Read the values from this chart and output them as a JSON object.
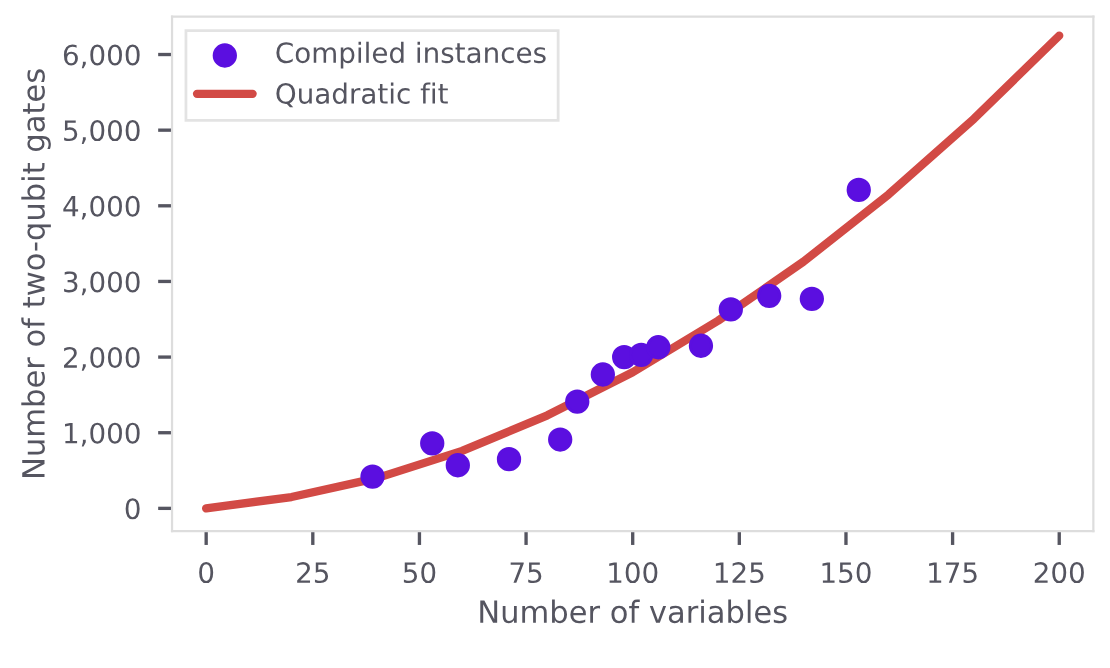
{
  "chart_data": {
    "type": "scatter",
    "xlabel": "Number of variables",
    "ylabel": "Number of two-qubit gates",
    "series": [
      {
        "name": "Compiled instances",
        "color": "#5b0fe0",
        "marker": "circle",
        "x": [
          39,
          53,
          59,
          71,
          83,
          87,
          93,
          98,
          102,
          106,
          116,
          123,
          132,
          142,
          153
        ],
        "values": [
          420,
          860,
          570,
          650,
          910,
          1410,
          1770,
          2000,
          2030,
          2130,
          2150,
          2630,
          2810,
          2770,
          4210
        ]
      },
      {
        "name": "Quadratic fit",
        "type": "line",
        "color": "#d24a45",
        "x": [
          0,
          20,
          40,
          60,
          80,
          100,
          120,
          140,
          160,
          180,
          200
        ],
        "values": [
          0,
          150,
          400,
          760,
          1230,
          1800,
          2480,
          3260,
          4150,
          5150,
          6250
        ]
      }
    ],
    "xlim": [
      -8,
      208
    ],
    "ylim": [
      -300,
      6500
    ],
    "xticks": [
      0,
      25,
      50,
      75,
      100,
      125,
      150,
      175,
      200
    ],
    "yticks": [
      {
        "value": 0,
        "label": "0"
      },
      {
        "value": 1000,
        "label": "1,000"
      },
      {
        "value": 2000,
        "label": "2,000"
      },
      {
        "value": 3000,
        "label": "3,000"
      },
      {
        "value": 4000,
        "label": "4,000"
      },
      {
        "value": 5000,
        "label": "5,000"
      },
      {
        "value": 6000,
        "label": "6,000"
      }
    ],
    "grid": false,
    "legend": "top left"
  }
}
